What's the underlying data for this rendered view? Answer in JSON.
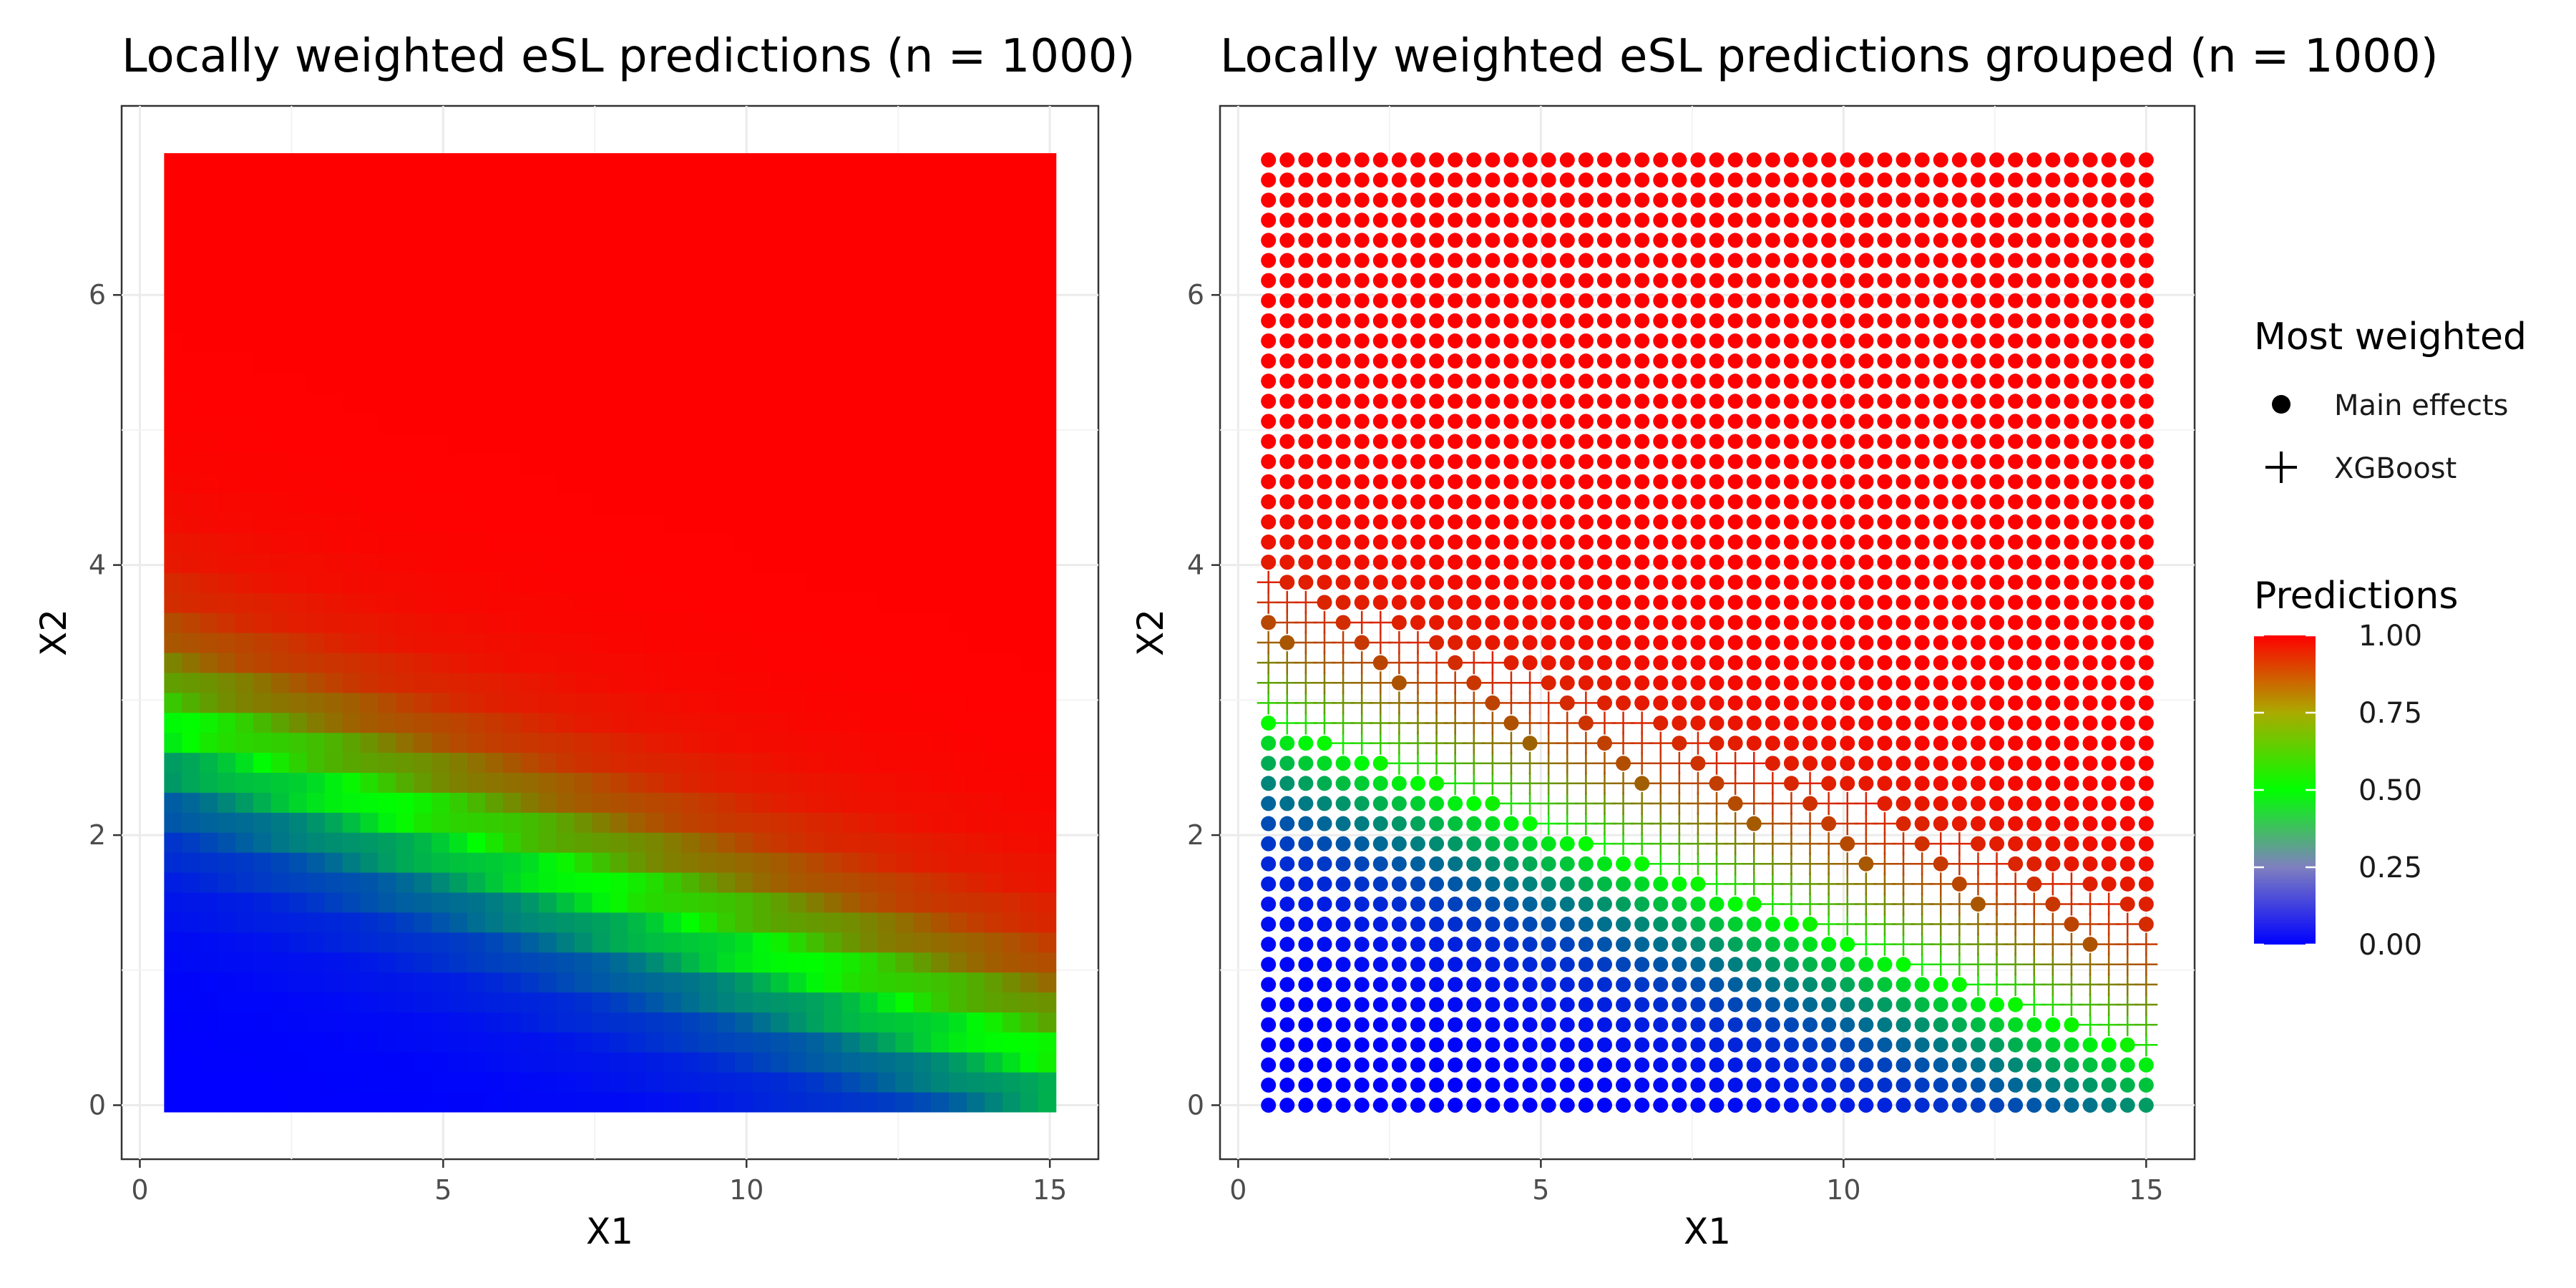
{
  "chart_data": [
    {
      "type": "heatmap",
      "title": "Locally weighted eSL predictions (n = 1000)",
      "xlabel": "X1",
      "ylabel": "X2",
      "xlim": [
        -0.3,
        15.8
      ],
      "ylim": [
        -0.4,
        7.4
      ],
      "x_ticks": [
        0,
        5,
        10,
        15
      ],
      "y_ticks": [
        0,
        2,
        4,
        6
      ],
      "grid": true,
      "grid_x": {
        "from": 0.4,
        "to": 15.1,
        "count": 50
      },
      "grid_y": {
        "from": -0.05,
        "to": 7.05,
        "count": 48
      },
      "value_note": "Predicted probability (0 = blue, 0.5 = green, 1 = red); boundary between low and high regions follows approx. X2 = 2.9 - 0.17*X1",
      "boundary": {
        "intercept": 2.9,
        "slope": -0.17
      }
    },
    {
      "type": "scatter",
      "title": "Locally weighted eSL predictions grouped (n = 1000)",
      "xlabel": "X1",
      "ylabel": "X2",
      "xlim": [
        -0.3,
        15.8
      ],
      "ylim": [
        -0.4,
        7.4
      ],
      "x_ticks": [
        0,
        5,
        10,
        15
      ],
      "y_ticks": [
        0,
        2,
        4,
        6
      ],
      "grid": true,
      "grid_x": {
        "from": 0.5,
        "to": 15.0,
        "count": 48
      },
      "grid_y": {
        "from": 0.0,
        "to": 7.0,
        "count": 48
      },
      "boundary": {
        "intercept": 2.9,
        "slope": -0.17
      },
      "groups": [
        {
          "name": "Main effects",
          "shape": "circle"
        },
        {
          "name": "XGBoost",
          "shape": "plus"
        }
      ]
    }
  ],
  "legend": {
    "shape_title": "Most weighted",
    "shape_items": [
      "Main effects",
      "XGBoost"
    ],
    "color_title": "Predictions",
    "color_ticks": [
      "1.00",
      "0.75",
      "0.50",
      "0.25",
      "0.00"
    ],
    "colors": [
      "#0000ff",
      "#00ff00",
      "#ff0000"
    ],
    "placement": "right"
  }
}
